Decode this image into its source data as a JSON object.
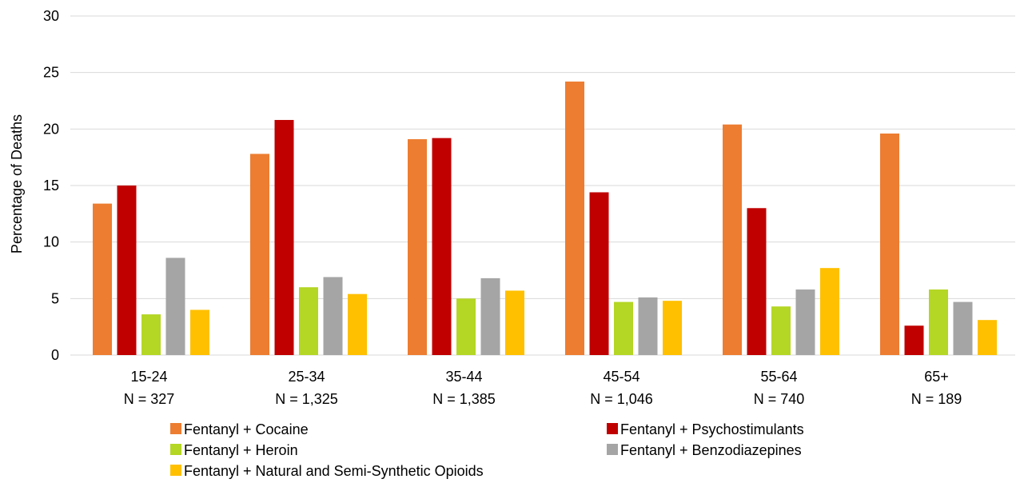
{
  "chart_data": {
    "type": "bar",
    "title": "",
    "xlabel": "",
    "ylabel": "Percentage of Deaths",
    "ylim": [
      0,
      30
    ],
    "yticks": [
      0,
      5,
      10,
      15,
      20,
      25,
      30
    ],
    "grid": true,
    "legend_position": "bottom",
    "categories": [
      "15-24",
      "25-34",
      "35-44",
      "45-54",
      "55-64",
      "65+"
    ],
    "category_sublabels": [
      "N = 327",
      "N = 1,325",
      "N = 1,385",
      "N = 1,046",
      "N = 740",
      "N = 189"
    ],
    "series": [
      {
        "name": "Fentanyl + Cocaine",
        "color": "#ED7D31",
        "values": [
          13.4,
          17.8,
          19.1,
          24.2,
          20.4,
          19.6
        ]
      },
      {
        "name": "Fentanyl + Psychostimulants",
        "color": "#C00000",
        "values": [
          15.0,
          20.8,
          19.2,
          14.4,
          13.0,
          2.6
        ]
      },
      {
        "name": "Fentanyl + Heroin",
        "color": "#B4D624",
        "values": [
          3.6,
          6.0,
          5.0,
          4.7,
          4.3,
          5.8
        ]
      },
      {
        "name": "Fentanyl + Benzodiazepines",
        "color": "#A5A5A5",
        "values": [
          8.6,
          6.9,
          6.8,
          5.1,
          5.8,
          4.7
        ]
      },
      {
        "name": "Fentanyl + Natural and Semi-Synthetic Opioids",
        "color": "#FFC000",
        "values": [
          4.0,
          5.4,
          5.7,
          4.8,
          7.7,
          3.1
        ]
      }
    ]
  }
}
